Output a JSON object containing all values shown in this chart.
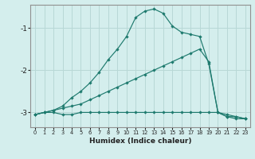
{
  "xlabel": "Humidex (Indice chaleur)",
  "background_color": "#d4eeed",
  "grid_color": "#b8d8d6",
  "line_color": "#1e7a6e",
  "xlim": [
    -0.5,
    23.5
  ],
  "ylim": [
    -3.35,
    -0.45
  ],
  "yticks": [
    -3,
    -2,
    -1
  ],
  "xticks": [
    0,
    1,
    2,
    3,
    4,
    5,
    6,
    7,
    8,
    9,
    10,
    11,
    12,
    13,
    14,
    15,
    16,
    17,
    18,
    19,
    20,
    21,
    22,
    23
  ],
  "series1_x": [
    0,
    1,
    2,
    3,
    4,
    5,
    6,
    7,
    8,
    9,
    10,
    11,
    12,
    13,
    14,
    15,
    16,
    17,
    18,
    19,
    20,
    21,
    22,
    23
  ],
  "series1_y": [
    -3.05,
    -3.0,
    -3.0,
    -3.05,
    -3.05,
    -3.0,
    -3.0,
    -3.0,
    -3.0,
    -3.0,
    -3.0,
    -3.0,
    -3.0,
    -3.0,
    -3.0,
    -3.0,
    -3.0,
    -3.0,
    -3.0,
    -3.0,
    -3.0,
    -3.05,
    -3.1,
    -3.15
  ],
  "series2_x": [
    0,
    1,
    2,
    3,
    4,
    5,
    6,
    7,
    8,
    9,
    10,
    11,
    12,
    13,
    14,
    15,
    16,
    17,
    18,
    19,
    20,
    21,
    22,
    23
  ],
  "series2_y": [
    -3.05,
    -3.0,
    -2.95,
    -2.9,
    -2.85,
    -2.8,
    -2.7,
    -2.6,
    -2.5,
    -2.4,
    -2.3,
    -2.2,
    -2.1,
    -2.0,
    -1.9,
    -1.8,
    -1.7,
    -1.6,
    -1.5,
    -1.8,
    -3.0,
    -3.1,
    -3.1,
    -3.15
  ],
  "series3_x": [
    0,
    1,
    2,
    3,
    4,
    5,
    6,
    7,
    8,
    9,
    10,
    11,
    12,
    13,
    14,
    15,
    16,
    17,
    18,
    19,
    20,
    21,
    22,
    23
  ],
  "series3_y": [
    -3.05,
    -3.0,
    -2.95,
    -2.85,
    -2.65,
    -2.5,
    -2.3,
    -2.05,
    -1.75,
    -1.5,
    -1.2,
    -0.75,
    -0.6,
    -0.55,
    -0.65,
    -0.95,
    -1.1,
    -1.15,
    -1.2,
    -1.85,
    -3.0,
    -3.1,
    -3.15,
    -3.15
  ]
}
